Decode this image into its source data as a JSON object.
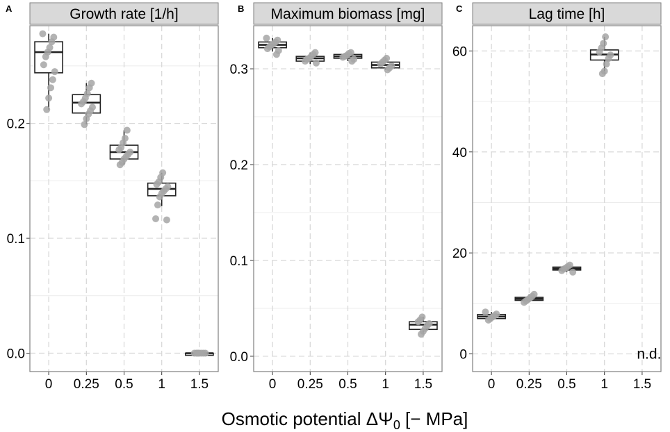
{
  "figure": {
    "xlabel": "Osmotic potential ΔΨ",
    "xlabel_sub": "0",
    "xlabel_unit": " [− MPa]"
  },
  "colors": {
    "point": "#a6a6a6",
    "strip_bg": "#d9d9d9",
    "strip_border": "#7f7f7f",
    "grid": "#d6d6d6",
    "frame": "#7f7f7f",
    "text": "#000000"
  },
  "chart_data": [
    {
      "panel": "A",
      "type": "box",
      "title": "Growth rate [1/h]",
      "categories": [
        "0",
        "0.25",
        "0.5",
        "1",
        "1.5"
      ],
      "ylim": [
        -0.016,
        0.285
      ],
      "yticks": [
        0.0,
        0.1,
        0.2
      ],
      "ytick_labels": [
        "0.0",
        "0.1",
        "0.2"
      ],
      "boxes": [
        {
          "min": 0.212,
          "q1": 0.244,
          "median": 0.262,
          "q3": 0.271,
          "max": 0.278
        },
        {
          "min": 0.199,
          "q1": 0.209,
          "median": 0.218,
          "q3": 0.225,
          "max": 0.235
        },
        {
          "min": 0.164,
          "q1": 0.169,
          "median": 0.175,
          "q3": 0.181,
          "max": 0.194
        },
        {
          "min": 0.128,
          "q1": 0.137,
          "median": 0.143,
          "q3": 0.148,
          "max": 0.157
        },
        {
          "min": 0.0,
          "q1": 0.0,
          "median": 0.0,
          "q3": 0.0,
          "max": 0.0
        }
      ],
      "points": [
        [
          0.278,
          0.275,
          0.271,
          0.266,
          0.262,
          0.258,
          0.251,
          0.245,
          0.238,
          0.231,
          0.222,
          0.212
        ],
        [
          0.235,
          0.231,
          0.226,
          0.222,
          0.219,
          0.217,
          0.214,
          0.211,
          0.208,
          0.204,
          0.199
        ],
        [
          0.194,
          0.187,
          0.183,
          0.179,
          0.177,
          0.175,
          0.173,
          0.171,
          0.169,
          0.166,
          0.164
        ],
        [
          0.157,
          0.153,
          0.149,
          0.147,
          0.145,
          0.143,
          0.141,
          0.139,
          0.136,
          0.129,
          0.117,
          0.116
        ],
        [
          0.0,
          0.0,
          0.0,
          0.0,
          0.0,
          0.0,
          0.0,
          0.0
        ]
      ],
      "annotations": []
    },
    {
      "panel": "B",
      "type": "box",
      "title": "Maximum biomass [mg]",
      "categories": [
        "0",
        "0.25",
        "0.5",
        "1",
        "1.5"
      ],
      "ylim": [
        -0.016,
        0.345
      ],
      "yticks": [
        0.0,
        0.1,
        0.2,
        0.3
      ],
      "ytick_labels": [
        "0.0",
        "0.1",
        "0.2",
        "0.3"
      ],
      "boxes": [
        {
          "min": 0.318,
          "q1": 0.322,
          "median": 0.325,
          "q3": 0.328,
          "max": 0.332
        },
        {
          "min": 0.305,
          "q1": 0.308,
          "median": 0.311,
          "q3": 0.313,
          "max": 0.317
        },
        {
          "min": 0.308,
          "q1": 0.311,
          "median": 0.313,
          "q3": 0.315,
          "max": 0.317
        },
        {
          "min": 0.299,
          "q1": 0.301,
          "median": 0.304,
          "q3": 0.307,
          "max": 0.311
        },
        {
          "min": 0.023,
          "q1": 0.028,
          "median": 0.033,
          "q3": 0.036,
          "max": 0.041
        }
      ],
      "points": [
        [
          0.332,
          0.33,
          0.328,
          0.326,
          0.325,
          0.323,
          0.321,
          0.319,
          0.315
        ],
        [
          0.317,
          0.315,
          0.313,
          0.311,
          0.31,
          0.308,
          0.306
        ],
        [
          0.317,
          0.316,
          0.314,
          0.313,
          0.312,
          0.31,
          0.308
        ],
        [
          0.311,
          0.309,
          0.307,
          0.305,
          0.303,
          0.301,
          0.299
        ],
        [
          0.041,
          0.038,
          0.036,
          0.034,
          0.032,
          0.029,
          0.026,
          0.023
        ]
      ],
      "annotations": []
    },
    {
      "panel": "C",
      "type": "box",
      "title": "Lag time [h]",
      "categories": [
        "0",
        "0.25",
        "0.5",
        "1",
        "1.5"
      ],
      "ylim": [
        -3.5,
        65
      ],
      "yticks": [
        0,
        20,
        40,
        60
      ],
      "ytick_labels": [
        "0",
        "20",
        "40",
        "60"
      ],
      "boxes": [
        {
          "min": 6.5,
          "q1": 7.0,
          "median": 7.4,
          "q3": 7.8,
          "max": 8.3
        },
        {
          "min": 10.2,
          "q1": 10.6,
          "median": 10.9,
          "q3": 11.2,
          "max": 11.8
        },
        {
          "min": 16.2,
          "q1": 16.6,
          "median": 16.9,
          "q3": 17.2,
          "max": 17.6
        },
        {
          "min": 55.5,
          "q1": 58.2,
          "median": 59.3,
          "q3": 60.2,
          "max": 62.8
        },
        null
      ],
      "points": [
        [
          8.3,
          7.9,
          7.6,
          7.3,
          7.0,
          6.7
        ],
        [
          11.8,
          11.4,
          11.1,
          10.8,
          10.5,
          10.2
        ],
        [
          17.6,
          17.3,
          17.0,
          16.8,
          16.5,
          16.2
        ],
        [
          62.8,
          61.5,
          60.6,
          59.8,
          59.2,
          58.5,
          57.4,
          56.0,
          55.5
        ],
        []
      ],
      "annotations": [
        {
          "label": "n.d.",
          "category": "1.5",
          "y": 0
        }
      ]
    }
  ]
}
